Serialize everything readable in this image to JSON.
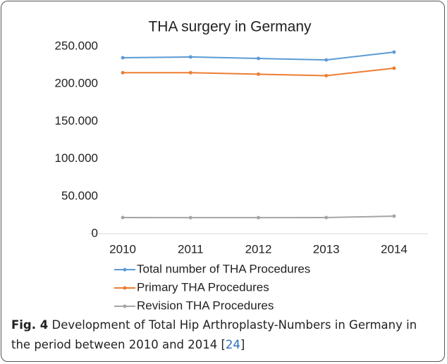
{
  "chart_data": {
    "type": "line",
    "title": "THA surgery in Germany",
    "categories": [
      "2010",
      "2011",
      "2012",
      "2013",
      "2014"
    ],
    "series": [
      {
        "name": "Total number of THA Procedures",
        "color": "#5b9bd5",
        "values": [
          235000,
          236000,
          234000,
          232000,
          242500
        ]
      },
      {
        "name": "Primary THA Procedures",
        "color": "#ed7d31",
        "values": [
          215000,
          215000,
          213000,
          211000,
          221000
        ]
      },
      {
        "name": "Revision THA Procedures",
        "color": "#a5a5a5",
        "values": [
          21600,
          21500,
          21500,
          21600,
          23500
        ]
      }
    ],
    "ylim": [
      0,
      250000
    ],
    "yticks": [
      0,
      {
        "value": 50000,
        "label": "50.000"
      },
      {
        "value": 100000,
        "label": "100.000"
      },
      {
        "value": 150000,
        "label": "150.000"
      },
      {
        "value": 200000,
        "label": "200.000"
      },
      {
        "value": 250000,
        "label": "250.000"
      }
    ],
    "legend": "bottom"
  },
  "caption": {
    "label": "Fig. 4",
    "text": "Development of Total Hip Arthroplasty-Numbers in Germany in the period between 2010 and 2014 [",
    "ref": "24",
    "end": "]"
  }
}
